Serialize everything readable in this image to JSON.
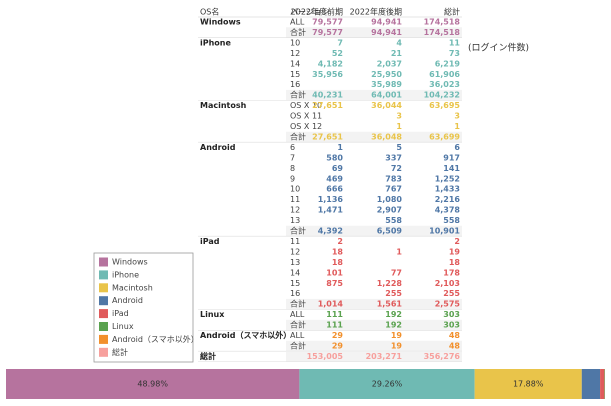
{
  "table": {
    "header": [
      "OS名",
      "バージョン",
      "2022年度前期",
      "2022年度後期",
      "総計"
    ],
    "groups": [
      {
        "os": "Windows",
        "color": "#b6739e",
        "rows": [
          [
            "ALL",
            "79,577",
            "94,941",
            "174,518"
          ],
          [
            "合計",
            "79,577",
            "94,941",
            "174,518"
          ]
        ]
      },
      {
        "os": "iPhone",
        "color": "#6fbab3",
        "rows": [
          [
            "10",
            "7",
            "4",
            "11"
          ],
          [
            "12",
            "52",
            "21",
            "73"
          ],
          [
            "14",
            "4,182",
            "2,037",
            "6,219"
          ],
          [
            "15",
            "35,956",
            "25,950",
            "61,906"
          ],
          [
            "16",
            null,
            "35,989",
            "36,023"
          ],
          [
            "合計",
            "40,231",
            "64,001",
            "104,232"
          ]
        ]
      },
      {
        "os": "Macintosh",
        "color": "#e9c44a",
        "rows": [
          [
            "OS X 10",
            "27,651",
            "36,044",
            "63,695"
          ],
          [
            "OS X 11",
            null,
            "3",
            "3"
          ],
          [
            "OS X 12",
            null,
            "1",
            "1"
          ],
          [
            "合計",
            "27,651",
            "36,048",
            "63,699"
          ]
        ]
      },
      {
        "os": "Android",
        "color": "#4f77a6",
        "rows": [
          [
            "6",
            "1",
            "5",
            "6"
          ],
          [
            "7",
            "580",
            "337",
            "917"
          ],
          [
            "8",
            "69",
            "72",
            "141"
          ],
          [
            "9",
            "469",
            "783",
            "1,252"
          ],
          [
            "10",
            "666",
            "767",
            "1,433"
          ],
          [
            "11",
            "1,136",
            "1,080",
            "2,216"
          ],
          [
            "12",
            "1,471",
            "2,907",
            "4,378"
          ],
          [
            "13",
            null,
            "558",
            "558"
          ],
          [
            "合計",
            "4,392",
            "6,509",
            "10,901"
          ]
        ]
      },
      {
        "os": "iPad",
        "color": "#e05a5b",
        "rows": [
          [
            "11",
            "2",
            null,
            "2"
          ],
          [
            "12",
            "18",
            "1",
            "19"
          ],
          [
            "13",
            "18",
            null,
            "18"
          ],
          [
            "14",
            "101",
            "77",
            "178"
          ],
          [
            "15",
            "875",
            "1,228",
            "2,103"
          ],
          [
            "16",
            null,
            "255",
            "255"
          ],
          [
            "合計",
            "1,014",
            "1,561",
            "2,575"
          ]
        ]
      },
      {
        "os": "Linux",
        "color": "#5aa24f",
        "rows": [
          [
            "ALL",
            "111",
            "192",
            "303"
          ],
          [
            "合計",
            "111",
            "192",
            "303"
          ]
        ]
      },
      {
        "os": "Android（スマホ以外）",
        "color": "#f2902c",
        "rows": [
          [
            "ALL",
            "29",
            "19",
            "48"
          ],
          [
            "合計",
            "29",
            "19",
            "48"
          ]
        ]
      },
      {
        "os": "総計",
        "color": "#f7a09d",
        "rows": [
          [
            null,
            "153,005",
            "203,271",
            "356,276"
          ]
        ]
      }
    ]
  },
  "annotation": "(ログイン件数)",
  "share_bar": {
    "values": [
      48.98,
      29.26,
      17.88,
      3.06,
      0.72,
      0.09,
      0.01
    ],
    "value_labels": [
      "48.98%",
      "29.26%",
      "17.88%",
      null,
      null,
      null,
      null
    ],
    "colors": [
      "#b6739e",
      "#6fbab3",
      "#e9c44a",
      "#4f77a6",
      "#e05a5b",
      "#5aa24f",
      "#f2902c"
    ]
  },
  "legend": {
    "items": [
      "Windows",
      "iPhone",
      "Macintosh",
      "Android",
      "iPad",
      "Linux",
      "Android（スマホ以外）",
      "総計"
    ],
    "colors": [
      "#b6739e",
      "#6fbab3",
      "#e9c44a",
      "#4f77a6",
      "#e05a5b",
      "#5aa24f",
      "#f2902c",
      "#f7a09d"
    ]
  }
}
